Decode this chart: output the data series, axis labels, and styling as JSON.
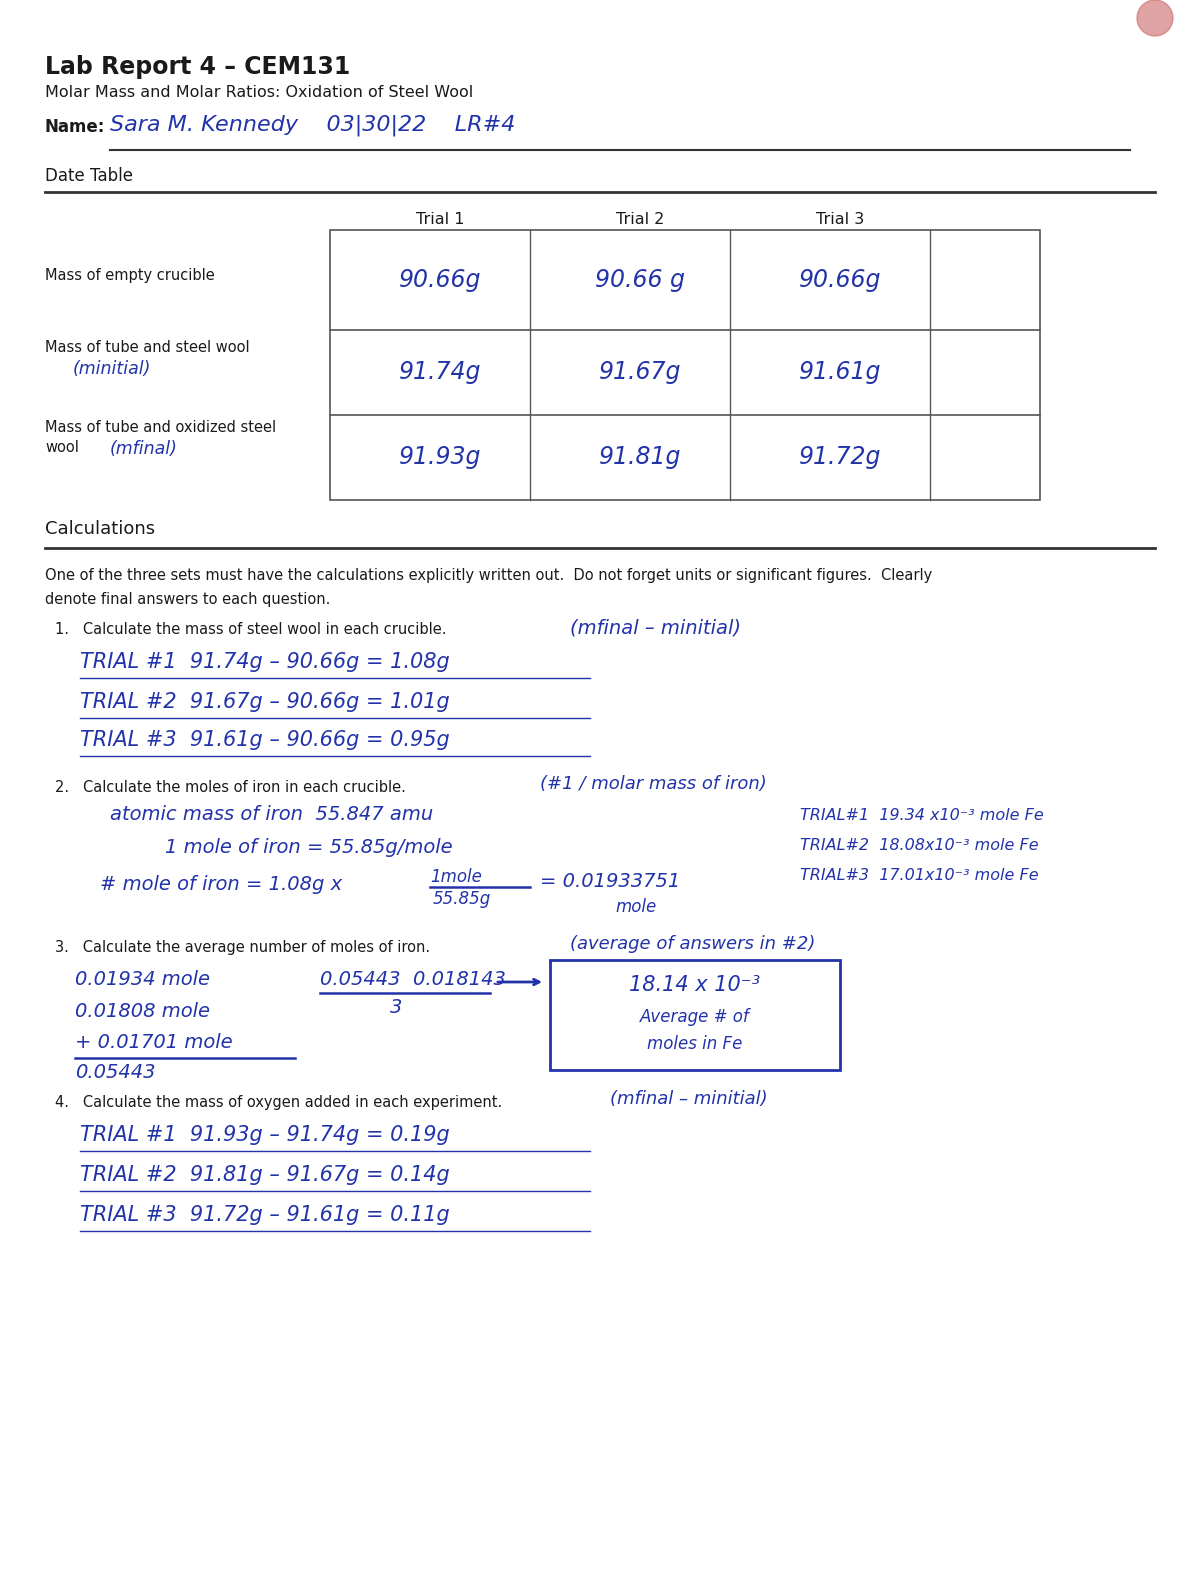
{
  "title": "Lab Report 4 – CEM131",
  "subtitle": "Molar Mass and Molar Ratios: Oxidation of Steel Wool",
  "name_label": "Name:",
  "name_value": "Sara M. Kennedy    03|30|22    LR#4",
  "date_table_label": "Date Table",
  "calculations_label": "Calculations",
  "table_headers": [
    "Trial 1",
    "Trial 2",
    "Trial 3"
  ],
  "table_data": [
    [
      "90.66g",
      "90.66 g",
      "90.66g"
    ],
    [
      "91.74g",
      "91.67g",
      "91.61g"
    ],
    [
      "91.93g",
      "91.81g",
      "91.72g"
    ]
  ],
  "instructions_line1": "One of the three sets must have the calculations explicitly written out.  Do not forget units or significant figures.  Clearly",
  "instructions_line2": "denote final answers to each question.",
  "q1_label": "1.   Calculate the mass of steel wool in each crucible.",
  "q1_hint": "(mfinal – minitial)",
  "q1_lines": [
    "TRIAL #1  91.74g – 90.66g = 1.08g",
    "TRIAL #2  91.67g – 90.66g = 1.01g",
    "TRIAL #3  91.61g – 90.66g = 0.95g"
  ],
  "q2_label": "2.   Calculate the moles of iron in each crucible.",
  "q2_hint": "(#1 / molar mass of iron)",
  "q3_label": "3.   Calculate the average number of moles of iron.",
  "q3_hint": "(average of answers in #2)",
  "q4_label": "4.   Calculate the mass of oxygen added in each experiment.",
  "q4_hint": "(mfinal – minitial)",
  "q4_lines": [
    "TRIAL #1  91.93g – 91.74g = 0.19g",
    "TRIAL #2  91.81g – 91.67g = 0.14g",
    "TRIAL #3  91.72g – 91.61g = 0.11g"
  ],
  "bg_color": "#ffffff",
  "text_color": "#1a1a1a",
  "handwriting_color": "#2233aa",
  "line_color": "#444444"
}
